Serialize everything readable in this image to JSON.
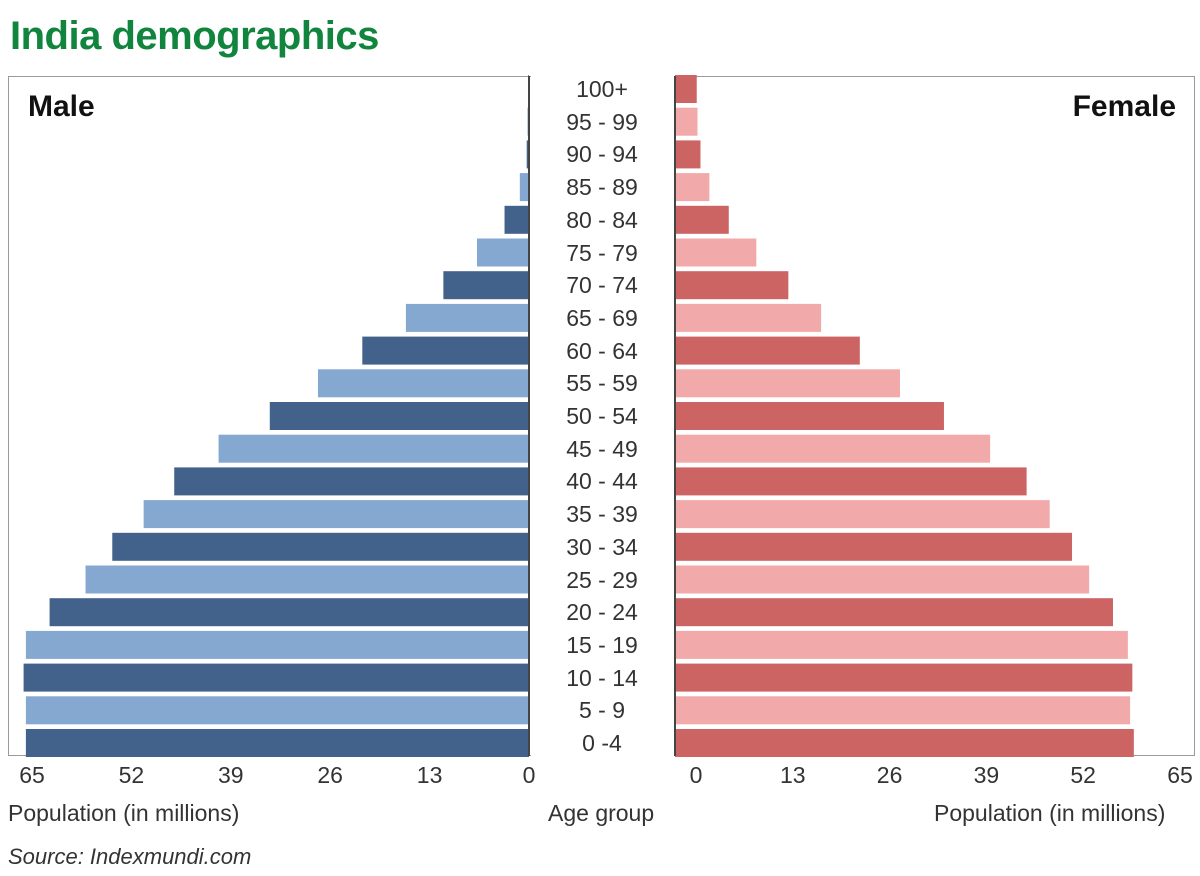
{
  "title": "India demographics",
  "source": "Source: Indexmundi.com",
  "colors": {
    "title": "#11843d",
    "male_dark": "#43628b",
    "male_light": "#85a8d1",
    "female_dark": "#cc6464",
    "female_light": "#f2a9aa"
  },
  "chart_data": {
    "type": "bar",
    "orientation": "horizontal-population-pyramid",
    "categories": [
      "100+",
      "95 - 99",
      "90 - 94",
      "85 - 89",
      "80 - 84",
      "75 - 79",
      "70 - 74",
      "65 - 69",
      "60 - 64",
      "55 - 59",
      "50 - 54",
      "45 - 49",
      "40 - 44",
      "35 - 39",
      "30 - 34",
      "25 - 29",
      "20 - 24",
      "15 - 19",
      "10 - 14",
      "5 - 9",
      "0 -4"
    ],
    "series": [
      {
        "name": "Male",
        "values": [
          0.1,
          0.2,
          0.3,
          1.2,
          3.2,
          6.8,
          11.2,
          16.1,
          21.8,
          27.6,
          33.9,
          40.6,
          46.4,
          50.4,
          54.5,
          58.0,
          62.7,
          65.8,
          66.1,
          65.8,
          65.8
        ]
      },
      {
        "name": "Female",
        "values": [
          0.1,
          0.2,
          0.6,
          1.8,
          4.4,
          8.1,
          12.4,
          16.8,
          22.0,
          27.4,
          33.3,
          39.5,
          44.4,
          47.5,
          50.5,
          52.8,
          56.0,
          58.0,
          58.6,
          58.3,
          58.8
        ]
      }
    ],
    "male_axis": {
      "ticks": [
        "65",
        "52",
        "39",
        "26",
        "13",
        "0"
      ],
      "label": "Population (in millions)",
      "xlim": [
        68,
        0
      ]
    },
    "female_axis": {
      "ticks": [
        "0",
        "13",
        "26",
        "39",
        "52",
        "65"
      ],
      "label": "Population (in millions)",
      "xlim": [
        -2.9,
        66
      ]
    },
    "category_axis_label": "Age group",
    "male_label": "Male",
    "female_label": "Female",
    "bar_style": "alternating dark/light shading per age group"
  }
}
